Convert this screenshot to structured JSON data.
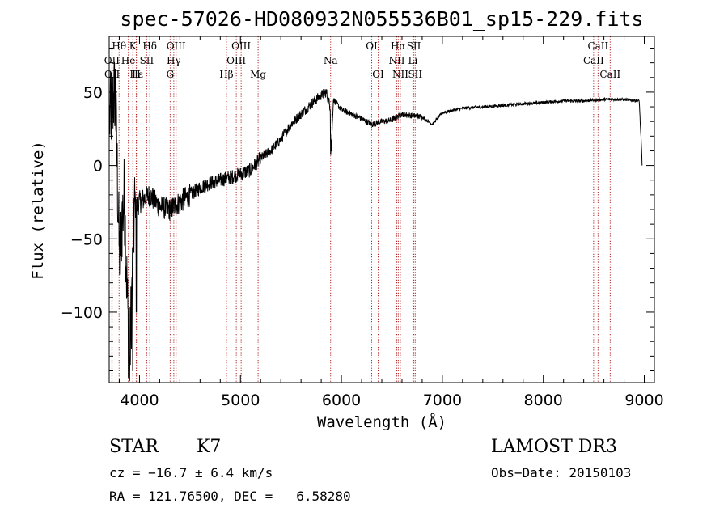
{
  "chart_data": {
    "type": "line",
    "title": "spec-57026-HD080932N055536B01_sp15-229.fits",
    "xlabel": "Wavelength (Å)",
    "ylabel": "Flux (relative)",
    "xlim": [
      3700,
      9100
    ],
    "ylim": [
      -148,
      88
    ],
    "xticks": [
      4000,
      5000,
      6000,
      7000,
      8000,
      9000
    ],
    "yticks": [
      -100,
      -50,
      0,
      50
    ],
    "grid": false,
    "series": [
      {
        "values_approx": {
          "x": [
            3700,
            3760,
            3800,
            3850,
            3900,
            3950,
            4000,
            4100,
            4200,
            4300,
            4400,
            4500,
            4600,
            4700,
            4800,
            4900,
            5000,
            5100,
            5200,
            5300,
            5400,
            5500,
            5600,
            5700,
            5800,
            5850,
            5890,
            5900,
            5920,
            6000,
            6100,
            6200,
            6300,
            6400,
            6500,
            6600,
            6700,
            6800,
            6900,
            7000,
            7200,
            7400,
            7600,
            7800,
            8000,
            8200,
            8400,
            8600,
            8800,
            8950,
            8980
          ],
          "y": [
            30,
            52,
            -60,
            -20,
            -140,
            -30,
            -25,
            -20,
            -28,
            -30,
            -25,
            -20,
            -15,
            -12,
            -10,
            -8,
            -6,
            -3,
            5,
            10,
            18,
            28,
            35,
            42,
            48,
            50,
            40,
            10,
            45,
            38,
            35,
            32,
            28,
            30,
            31,
            35,
            34,
            33,
            28,
            36,
            39,
            40,
            41,
            42,
            43,
            44,
            44,
            45,
            45,
            44,
            0
          ]
        }
      }
    ],
    "spectral_lines": [
      {
        "label": "Hθ",
        "x": 3798,
        "row": 1
      },
      {
        "label": "K",
        "x": 3934,
        "row": 1
      },
      {
        "label": "Hδ",
        "x": 4102,
        "row": 1
      },
      {
        "label": "OIII",
        "x": 4363,
        "row": 1
      },
      {
        "label": "OIII",
        "x": 5007,
        "row": 1
      },
      {
        "label": "OI",
        "x": 6300,
        "row": 1
      },
      {
        "label": "Hα",
        "x": 6563,
        "row": 1
      },
      {
        "label": "SII",
        "x": 6717,
        "row": 1
      },
      {
        "label": "CaII",
        "x": 8542,
        "row": 1
      },
      {
        "label": "OII",
        "x": 3727,
        "row": 2
      },
      {
        "label": "He",
        "x": 3889,
        "row": 2
      },
      {
        "label": "SII",
        "x": 4072,
        "row": 2
      },
      {
        "label": "Hγ",
        "x": 4340,
        "row": 2
      },
      {
        "label": "OIII",
        "x": 4959,
        "row": 2
      },
      {
        "label": "Na",
        "x": 5893,
        "row": 2
      },
      {
        "label": "NII",
        "x": 6548,
        "row": 2
      },
      {
        "label": "Li",
        "x": 6708,
        "row": 2
      },
      {
        "label": "CaII",
        "x": 8498,
        "row": 2
      },
      {
        "label": "OII",
        "x": 3729,
        "row": 3
      },
      {
        "label": "Hε",
        "x": 3970,
        "row": 3
      },
      {
        "label": "H",
        "x": 3968,
        "row": 3
      },
      {
        "label": "G",
        "x": 4304,
        "row": 3
      },
      {
        "label": "Hβ",
        "x": 4861,
        "row": 3
      },
      {
        "label": "Mg",
        "x": 5175,
        "row": 3
      },
      {
        "label": "OI",
        "x": 6364,
        "row": 3
      },
      {
        "label": "NII",
        "x": 6584,
        "row": 3
      },
      {
        "label": "SII",
        "x": 6731,
        "row": 3
      },
      {
        "label": "CaII",
        "x": 8662,
        "row": 3
      }
    ]
  },
  "info": {
    "object_class": "STAR",
    "subclass": "K7",
    "survey": "LAMOST DR3",
    "redshift": "cz = −16.7 ± 6.4 km/s",
    "obs_date": "Obs−Date: 20150103",
    "coords": "RA = 121.76500, DEC =   6.58280"
  },
  "colors": {
    "line_marker": "#b22222",
    "spectrum": "#000000",
    "axes": "#000000"
  }
}
